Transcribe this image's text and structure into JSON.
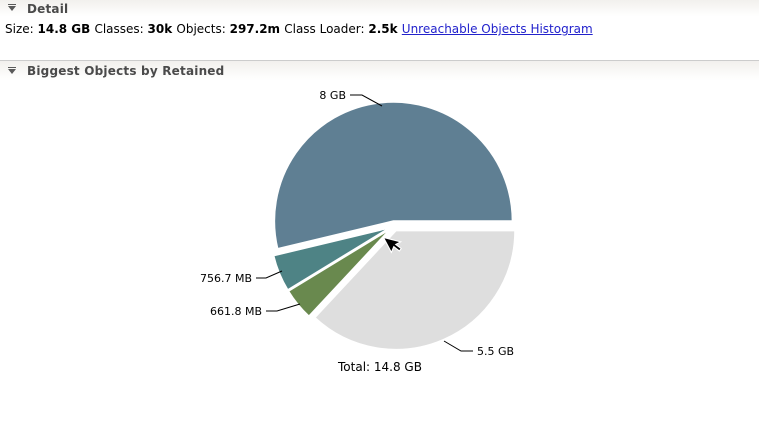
{
  "sections": {
    "detail": {
      "title": "Detail"
    },
    "biggest_objects": {
      "title": "Biggest Objects by Retained"
    }
  },
  "detail_info": {
    "fields": [
      {
        "label": "Size:",
        "value": "14.8 GB"
      },
      {
        "label": "Classes:",
        "value": "30k"
      },
      {
        "label": "Objects:",
        "value": "297.2m"
      },
      {
        "label": "Class Loader:",
        "value": "2.5k"
      }
    ],
    "link_label": "Unreachable Objects Histogram"
  },
  "colors": {
    "link": "#2222cc",
    "header_text": "#4a4a4a",
    "divider": "#cccccc"
  },
  "chart_data": {
    "type": "pie",
    "title": "Biggest Objects by Retained",
    "total_label": "Total: 14.8 GB",
    "unit": "GB",
    "start_angle_deg": 0,
    "direction": "counterclockwise",
    "legend": "none",
    "exploded": true,
    "slices": [
      {
        "label": "8 GB",
        "value": 8.0,
        "color": "#5f7f93"
      },
      {
        "label": "756.7 MB",
        "value": 0.739,
        "color": "#4e8385"
      },
      {
        "label": "661.8 MB",
        "value": 0.646,
        "color": "#69894e"
      },
      {
        "label": "5.5 GB",
        "value": 5.5,
        "color": "#dedede"
      }
    ]
  }
}
